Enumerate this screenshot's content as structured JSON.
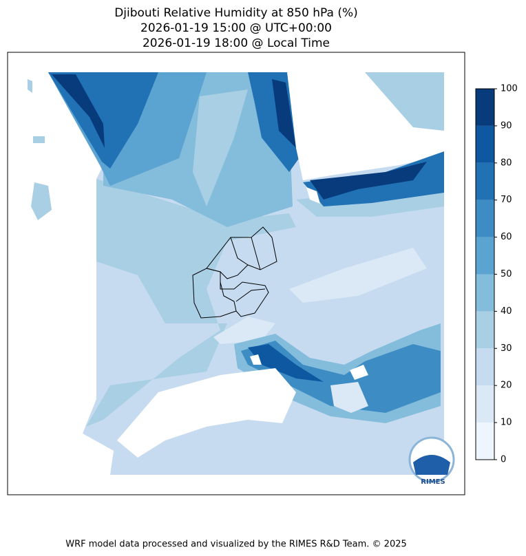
{
  "title": [
    "Djibouti Relative Humidity at 850 hPa (%)",
    "2026-01-19 15:00 @ UTC+00:00",
    "2026-01-19 18:00 @ Local Time"
  ],
  "colorbar": {
    "ticks": [
      0,
      10,
      20,
      30,
      40,
      50,
      60,
      70,
      80,
      90,
      100
    ],
    "colors": [
      "#eef5fc",
      "#dbe9f6",
      "#c6dbef",
      "#a9cfe5",
      "#84bcdb",
      "#5ba3d0",
      "#3d8dc4",
      "#2171b5",
      "#0e58a2",
      "#083b7c"
    ]
  },
  "logo": "RIMES",
  "footer": "WRF model data processed and visualized by the RIMES R&D Team. © 2025"
}
